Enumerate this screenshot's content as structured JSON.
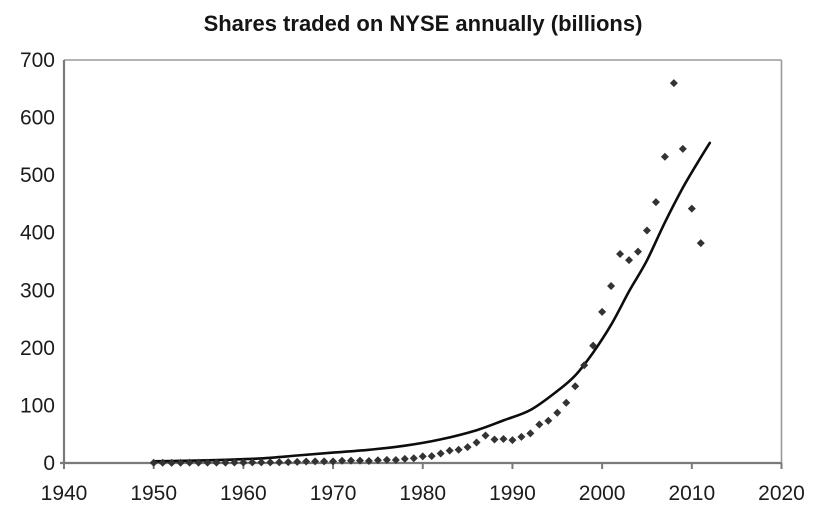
{
  "colors": {
    "background": "#ffffff",
    "axis": "#7a7a7a",
    "frame": "#9a9a9a",
    "tick_text": "#1c1c1c",
    "title_text": "#151515"
  },
  "chart_data": {
    "type": "scatter",
    "title": "Shares traded on NYSE annually (billions)",
    "xlabel": "",
    "ylabel": "",
    "xlim": [
      1940,
      2020
    ],
    "ylim": [
      0,
      700
    ],
    "x_ticks": [
      1940,
      1950,
      1960,
      1970,
      1980,
      1990,
      2000,
      2010,
      2020
    ],
    "y_ticks": [
      0,
      100,
      200,
      300,
      400,
      500,
      600,
      700
    ],
    "grid": false,
    "legend": false,
    "marker": {
      "shape": "diamond",
      "color": "#333333",
      "size": 8
    },
    "series": [
      {
        "points": [
          [
            1950,
            0.5
          ],
          [
            1951,
            0.4
          ],
          [
            1952,
            0.3
          ],
          [
            1953,
            0.35
          ],
          [
            1954,
            0.6
          ],
          [
            1955,
            0.65
          ],
          [
            1956,
            0.55
          ],
          [
            1957,
            0.55
          ],
          [
            1958,
            0.75
          ],
          [
            1959,
            0.8
          ],
          [
            1960,
            0.8
          ],
          [
            1961,
            1.0
          ],
          [
            1962,
            1.0
          ],
          [
            1963,
            1.1
          ],
          [
            1964,
            1.2
          ],
          [
            1965,
            1.6
          ],
          [
            1966,
            1.9
          ],
          [
            1967,
            2.5
          ],
          [
            1968,
            2.9
          ],
          [
            1969,
            2.9
          ],
          [
            1970,
            2.9
          ],
          [
            1971,
            3.9
          ],
          [
            1972,
            4.1
          ],
          [
            1973,
            4.1
          ],
          [
            1974,
            3.5
          ],
          [
            1975,
            4.7
          ],
          [
            1976,
            5.4
          ],
          [
            1977,
            5.3
          ],
          [
            1978,
            7.2
          ],
          [
            1979,
            8.2
          ],
          [
            1980,
            11.4
          ],
          [
            1981,
            11.9
          ],
          [
            1982,
            16.5
          ],
          [
            1983,
            21.6
          ],
          [
            1984,
            23.1
          ],
          [
            1985,
            27.5
          ],
          [
            1986,
            35.7
          ],
          [
            1987,
            47.8
          ],
          [
            1988,
            40.8
          ],
          [
            1989,
            41.7
          ],
          [
            1990,
            39.7
          ],
          [
            1991,
            45.3
          ],
          [
            1992,
            51.4
          ],
          [
            1993,
            66.9
          ],
          [
            1994,
            73.4
          ],
          [
            1995,
            87.2
          ],
          [
            1996,
            104.6
          ],
          [
            1997,
            133.3
          ],
          [
            1998,
            169.7
          ],
          [
            1999,
            203.9
          ],
          [
            2000,
            262.5
          ],
          [
            2001,
            307.5
          ],
          [
            2002,
            363.1
          ],
          [
            2003,
            352.4
          ],
          [
            2004,
            367.1
          ],
          [
            2005,
            403.8
          ],
          [
            2006,
            453.1
          ],
          [
            2007,
            532.0
          ],
          [
            2008,
            659.9
          ],
          [
            2009,
            545.6
          ],
          [
            2010,
            441.9
          ],
          [
            2011,
            382.0
          ]
        ]
      }
    ],
    "trend_line": {
      "style": "exponential-fit",
      "color": "#0d0d0d",
      "width": 2.6,
      "anchors": [
        [
          1950,
          3
        ],
        [
          1954,
          4
        ],
        [
          1958,
          5.5
        ],
        [
          1962,
          8
        ],
        [
          1966,
          13
        ],
        [
          1970,
          18
        ],
        [
          1974,
          23
        ],
        [
          1978,
          30
        ],
        [
          1982,
          41
        ],
        [
          1986,
          57
        ],
        [
          1989,
          74
        ],
        [
          1992,
          92
        ],
        [
          1995,
          125
        ],
        [
          1997,
          152
        ],
        [
          1999,
          192
        ],
        [
          2001,
          240
        ],
        [
          2003,
          298
        ],
        [
          2005,
          352
        ],
        [
          2007,
          418
        ],
        [
          2009,
          478
        ],
        [
          2010.5,
          518
        ],
        [
          2012,
          556
        ]
      ]
    }
  }
}
